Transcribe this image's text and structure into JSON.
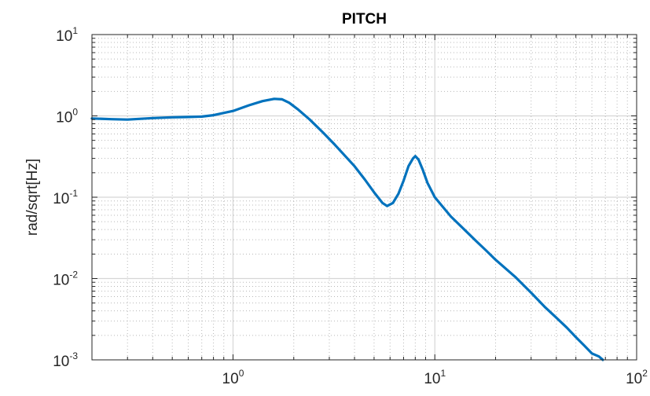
{
  "chart_data": {
    "type": "line",
    "title": "PITCH",
    "xlabel": "",
    "ylabel": "rad/sqrt[Hz]",
    "xscale": "log",
    "yscale": "log",
    "xlim": [
      0.2,
      100
    ],
    "ylim": [
      0.001,
      10
    ],
    "grid": "major and minor (dotted)",
    "x_ticks": [
      {
        "base": "10",
        "exp": "0",
        "value": 1
      },
      {
        "base": "10",
        "exp": "1",
        "value": 10
      },
      {
        "base": "10",
        "exp": "2",
        "value": 100
      }
    ],
    "y_ticks": [
      {
        "base": "10",
        "exp": "1",
        "value": 10
      },
      {
        "base": "10",
        "exp": "0",
        "value": 1
      },
      {
        "base": "10",
        "exp": "-1",
        "value": 0.1
      },
      {
        "base": "10",
        "exp": "-2",
        "value": 0.01
      },
      {
        "base": "10",
        "exp": "-3",
        "value": 0.001
      }
    ],
    "series": [
      {
        "color": "#0072BD",
        "x": [
          0.2,
          0.25,
          0.3,
          0.35,
          0.4,
          0.5,
          0.6,
          0.7,
          0.8,
          1.0,
          1.2,
          1.4,
          1.6,
          1.75,
          1.9,
          2.1,
          2.4,
          2.8,
          3.2,
          3.6,
          4.0,
          4.5,
          5.0,
          5.5,
          5.8,
          6.2,
          6.6,
          7.0,
          7.4,
          7.8,
          8.0,
          8.3,
          8.7,
          9.2,
          10,
          11,
          12,
          14,
          16,
          18,
          20,
          25,
          30,
          35,
          40,
          45,
          50,
          55,
          60,
          65,
          68
        ],
        "y": [
          0.93,
          0.91,
          0.9,
          0.92,
          0.94,
          0.96,
          0.97,
          0.98,
          1.02,
          1.15,
          1.35,
          1.52,
          1.62,
          1.6,
          1.45,
          1.2,
          0.9,
          0.62,
          0.44,
          0.32,
          0.24,
          0.165,
          0.115,
          0.085,
          0.078,
          0.085,
          0.11,
          0.16,
          0.24,
          0.3,
          0.32,
          0.29,
          0.22,
          0.15,
          0.1,
          0.075,
          0.058,
          0.04,
          0.029,
          0.022,
          0.017,
          0.0105,
          0.0067,
          0.0045,
          0.0033,
          0.0025,
          0.0019,
          0.0015,
          0.0012,
          0.0011,
          0.001
        ]
      }
    ]
  }
}
